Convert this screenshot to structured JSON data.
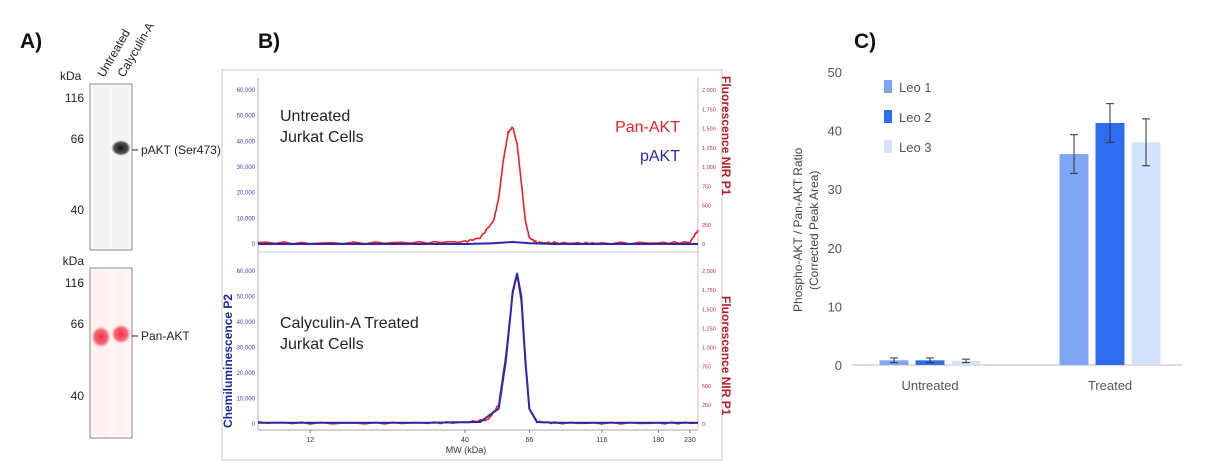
{
  "panels": {
    "a": "A)",
    "b": "B)",
    "c": "C)"
  },
  "panel_a": {
    "units": "kDa",
    "lanes": [
      "Untreated",
      "Calyculin-A"
    ],
    "blots": [
      {
        "markers": [
          "116",
          "66",
          "40"
        ],
        "band_label": "pAKT (Ser473)",
        "color": "#222222",
        "lanes_with_band": [
          false,
          true
        ]
      },
      {
        "markers": [
          "116",
          "66",
          "40"
        ],
        "band_label": "Pan-AKT",
        "color": "#f04050",
        "lanes_with_band": [
          true,
          true
        ]
      }
    ]
  },
  "panel_b": {
    "left_axis_title": "Chemiluminescence P2",
    "right_axis_title": "Fluorescence NIR P1",
    "xlabel": "MW (kDa)",
    "x_ticks": [
      "12",
      "40",
      "66",
      "116",
      "180",
      "230"
    ],
    "left_ticks": [
      "0",
      "10,000",
      "20,000",
      "30,000",
      "40,000",
      "50,000",
      "60,000"
    ],
    "right_ticks": [
      "0",
      "250",
      "500",
      "750",
      "1,000",
      "1,250",
      "1,500",
      "1,750",
      "2,000"
    ],
    "series_colors": {
      "Pan-AKT": "#e8202a",
      "pAKT": "#2a2aa8"
    },
    "top": {
      "annotation_line1": "Untreated",
      "annotation_line2": "Jurkat Cells",
      "legend": [
        "Pan-AKT",
        "pAKT"
      ]
    },
    "bottom": {
      "annotation_line1": "Calyculin-A Treated",
      "annotation_line2": "Jurkat Cells"
    }
  },
  "chart_data": [
    {
      "type": "line",
      "title": "",
      "xlabel": "MW (kDa)",
      "ylabel": "Chemiluminescence P2",
      "y2label": "Fluorescence NIR P1",
      "condition": "Untreated Jurkat Cells",
      "x_scale": "log",
      "ylim": [
        0,
        60000
      ],
      "y2lim": [
        0,
        2000
      ],
      "series": [
        {
          "name": "Pan-AKT",
          "axis": "right",
          "color": "#e8202a",
          "x": [
            8,
            12,
            20,
            30,
            40,
            45,
            50,
            52,
            54,
            56,
            58,
            60,
            62,
            64,
            66,
            70,
            80,
            100,
            116,
            180,
            230,
            245
          ],
          "y": [
            20,
            10,
            15,
            20,
            30,
            80,
            300,
            600,
            1100,
            1450,
            1520,
            1300,
            800,
            300,
            80,
            20,
            15,
            10,
            10,
            15,
            20,
            180
          ]
        },
        {
          "name": "pAKT",
          "axis": "left",
          "color": "#2a2aa8",
          "x": [
            8,
            40,
            50,
            58,
            66,
            80,
            245
          ],
          "y": [
            0,
            0,
            300,
            800,
            300,
            0,
            0
          ]
        }
      ]
    },
    {
      "type": "line",
      "title": "",
      "xlabel": "MW (kDa)",
      "ylabel": "Chemiluminescence P2",
      "y2label": "Fluorescence NIR P1",
      "condition": "Calyculin-A Treated Jurkat Cells",
      "x_scale": "log",
      "ylim": [
        0,
        60000
      ],
      "y2lim": [
        0,
        2000
      ],
      "series": [
        {
          "name": "Pan-AKT",
          "axis": "right",
          "color": "#e8202a",
          "x": [
            8,
            12,
            20,
            30,
            40,
            48,
            52,
            55,
            58,
            60,
            62,
            64,
            66,
            70,
            80,
            116,
            180,
            245
          ],
          "y": [
            20,
            10,
            10,
            15,
            20,
            60,
            250,
            900,
            1700,
            1950,
            1600,
            800,
            200,
            30,
            15,
            10,
            10,
            15
          ]
        },
        {
          "name": "pAKT",
          "axis": "left",
          "color": "#2a2aa8",
          "x": [
            8,
            30,
            45,
            52,
            55,
            58,
            60,
            62,
            64,
            66,
            70,
            80,
            245
          ],
          "y": [
            500,
            500,
            800,
            6000,
            25000,
            52000,
            59000,
            50000,
            25000,
            6000,
            800,
            500,
            500
          ]
        }
      ]
    },
    {
      "type": "bar",
      "title": "",
      "ylabel_line1": "Phospho-AKT / Pan-AKT Ratio",
      "ylabel_line2": "(Corrected Peak Area)",
      "xlabel": "",
      "categories": [
        "Untreated",
        "Treated"
      ],
      "ylim": [
        0,
        50
      ],
      "yticks": [
        "0",
        "10",
        "20",
        "30",
        "40",
        "50"
      ],
      "legend_position": "top-left",
      "grid": false,
      "series": [
        {
          "name": "Leo 1",
          "color": "#7fa6f5",
          "values": [
            0.8,
            36.0
          ],
          "errors": [
            0.4,
            3.3
          ]
        },
        {
          "name": "Leo 2",
          "color": "#2f6df0",
          "values": [
            0.8,
            41.3
          ],
          "errors": [
            0.4,
            3.3
          ]
        },
        {
          "name": "Leo 3",
          "color": "#d3e3fb",
          "values": [
            0.7,
            38.0
          ],
          "errors": [
            0.3,
            4.0
          ]
        }
      ]
    }
  ]
}
